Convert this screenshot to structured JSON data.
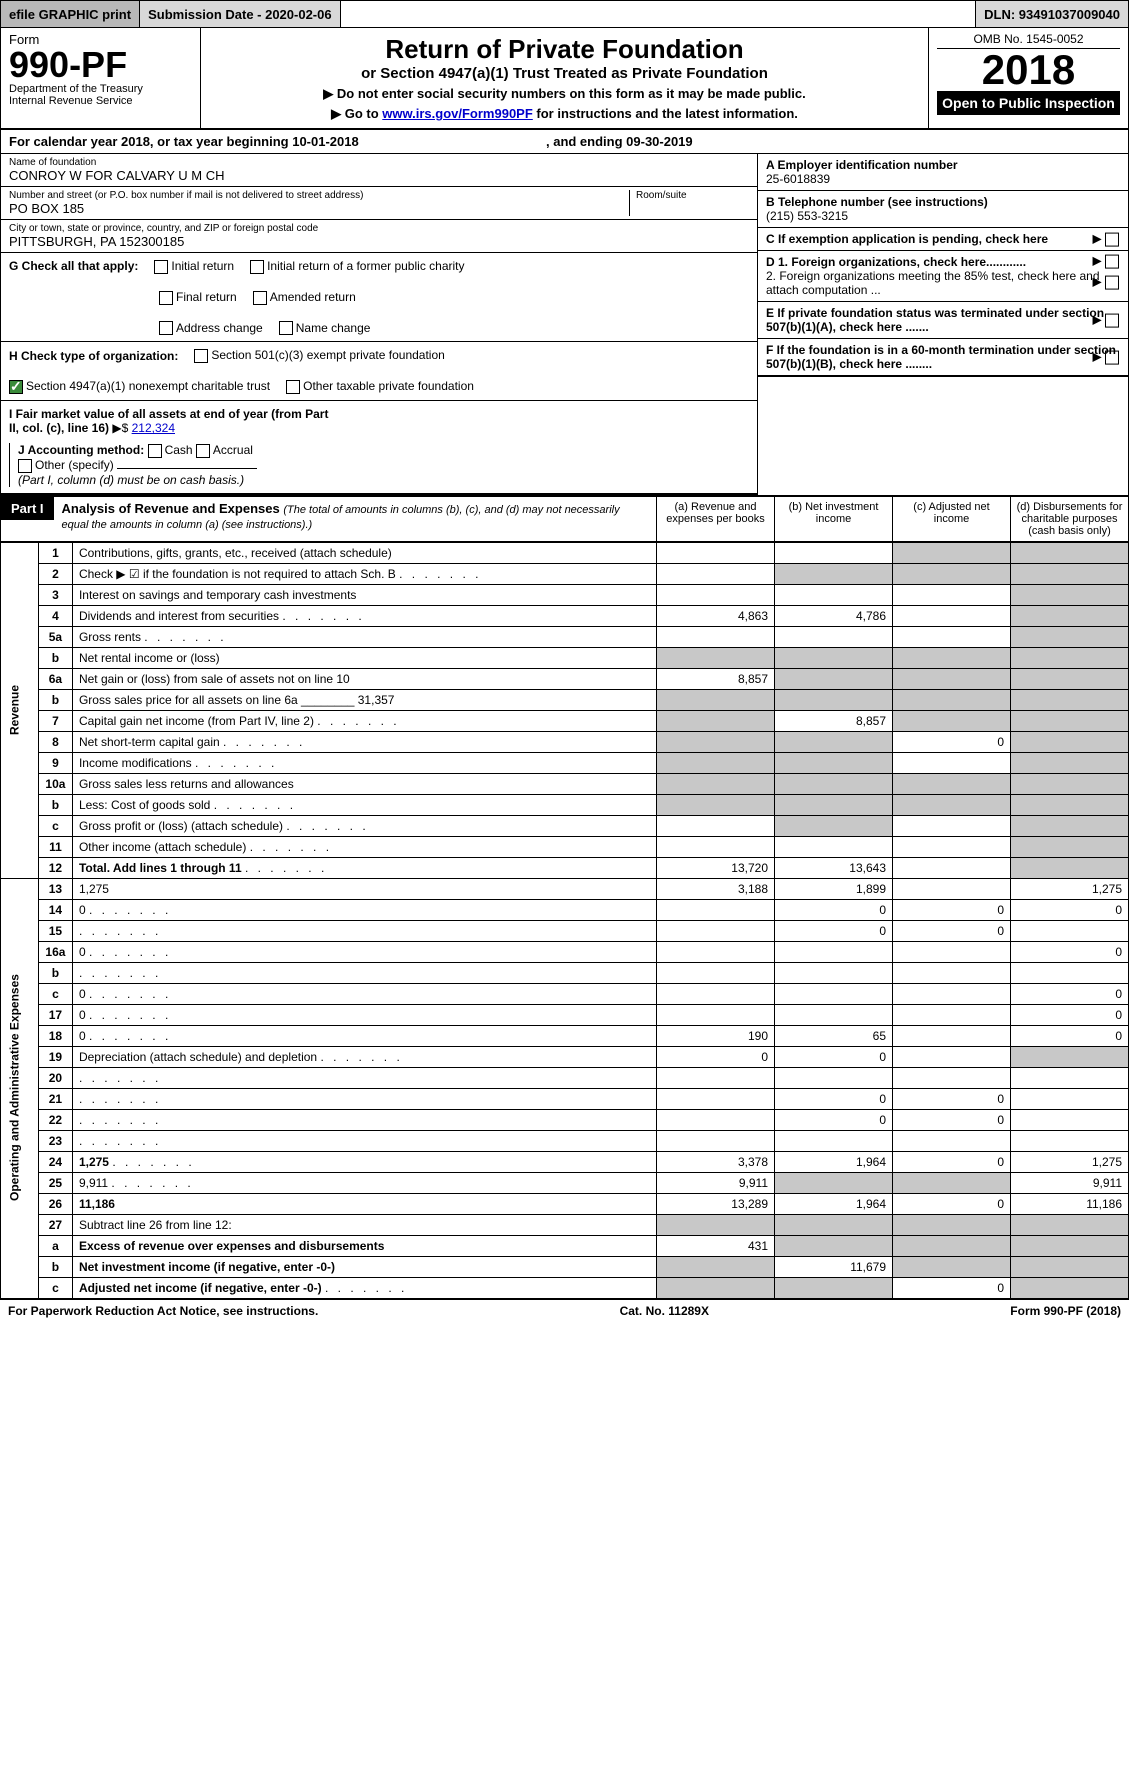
{
  "colors": {
    "black": "#000000",
    "white": "#ffffff",
    "gray_dark": "#b8b8b8",
    "gray_mid": "#d8d8d8",
    "shade": "#c8c8c8",
    "link": "#0000cc",
    "check_green": "#3a8a3a"
  },
  "topbar": {
    "efile": "efile GRAPHIC print",
    "subdate_label": "Submission Date - 2020-02-06",
    "dln": "DLN: 93491037009040"
  },
  "header": {
    "form_word": "Form",
    "form_num": "990-PF",
    "dept": "Department of the Treasury",
    "irs": "Internal Revenue Service",
    "title": "Return of Private Foundation",
    "subtitle": "or Section 4947(a)(1) Trust Treated as Private Foundation",
    "note1": "▶ Do not enter social security numbers on this form as it may be made public.",
    "note2_pre": "▶ Go to ",
    "note2_link": "www.irs.gov/Form990PF",
    "note2_post": " for instructions and the latest information.",
    "omb": "OMB No. 1545-0052",
    "year": "2018",
    "open": "Open to Public Inspection"
  },
  "calrow": {
    "text_a": "For calendar year 2018, or tax year beginning 10-01-2018",
    "text_b": ", and ending 09-30-2019"
  },
  "info": {
    "name_lbl": "Name of foundation",
    "name_val": "CONROY W FOR CALVARY U M CH",
    "addr_lbl": "Number and street (or P.O. box number if mail is not delivered to street address)",
    "room_lbl": "Room/suite",
    "addr_val": "PO BOX 185",
    "city_lbl": "City or town, state or province, country, and ZIP or foreign postal code",
    "city_val": "PITTSBURGH, PA  152300185",
    "ein_lbl": "A Employer identification number",
    "ein_val": "25-6018839",
    "tel_lbl": "B Telephone number (see instructions)",
    "tel_val": "(215) 553-3215",
    "c_lbl": "C If exemption application is pending, check here",
    "d1": "D 1. Foreign organizations, check here............",
    "d2": "2. Foreign organizations meeting the 85% test, check here and attach computation ...",
    "e_lbl": "E  If private foundation status was terminated under section 507(b)(1)(A), check here .......",
    "f_lbl": "F  If the foundation is in a 60-month termination under section 507(b)(1)(B), check here ........"
  },
  "checks": {
    "g_lbl": "G Check all that apply:",
    "g_opts": [
      "Initial return",
      "Initial return of a former public charity",
      "Final return",
      "Amended return",
      "Address change",
      "Name change"
    ],
    "h_lbl": "H Check type of organization:",
    "h1": "Section 501(c)(3) exempt private foundation",
    "h2": "Section 4947(a)(1) nonexempt charitable trust",
    "h3": "Other taxable private foundation",
    "i_lbl": "I Fair market value of all assets at end of year (from Part II, col. (c), line 16)",
    "i_val": "212,324",
    "j_lbl": "J Accounting method:",
    "j1": "Cash",
    "j2": "Accrual",
    "j3": "Other (specify)",
    "j_note": "(Part I, column (d) must be on cash basis.)"
  },
  "part1": {
    "tag": "Part I",
    "title": "Analysis of Revenue and Expenses",
    "title_note": "(The total of amounts in columns (b), (c), and (d) may not necessarily equal the amounts in column (a) (see instructions).)",
    "col_a": "(a)   Revenue and expenses per books",
    "col_b": "(b)  Net investment income",
    "col_c": "(c)  Adjusted net income",
    "col_d": "(d)  Disbursements for charitable purposes (cash basis only)"
  },
  "sidelabels": {
    "revenue": "Revenue",
    "expenses": "Operating and Administrative Expenses"
  },
  "rows": [
    {
      "n": "1",
      "d": "Contributions, gifts, grants, etc., received (attach schedule)",
      "a": "",
      "b": "",
      "c_shade": true,
      "d_shade": true
    },
    {
      "n": "2",
      "d": "Check ▶ ☑ if the foundation is not required to attach Sch. B",
      "dots": true,
      "a": "",
      "b_shade": true,
      "c_shade": true,
      "d_shade": true
    },
    {
      "n": "3",
      "d": "Interest on savings and temporary cash investments",
      "a": "",
      "b": "",
      "c": "",
      "d_shade": true
    },
    {
      "n": "4",
      "d": "Dividends and interest from securities",
      "dots": true,
      "a": "4,863",
      "b": "4,786",
      "c": "",
      "d_shade": true
    },
    {
      "n": "5a",
      "d": "Gross rents",
      "dots": true,
      "a": "",
      "b": "",
      "c": "",
      "d_shade": true
    },
    {
      "n": "b",
      "d": "Net rental income or (loss)",
      "a_shade": true,
      "b_shade": true,
      "c_shade": true,
      "d_shade": true
    },
    {
      "n": "6a",
      "d": "Net gain or (loss) from sale of assets not on line 10",
      "a": "8,857",
      "b_shade": true,
      "c_shade": true,
      "d_shade": true
    },
    {
      "n": "b",
      "d": "Gross sales price for all assets on line 6a ________ 31,357",
      "a_shade": true,
      "b_shade": true,
      "c_shade": true,
      "d_shade": true
    },
    {
      "n": "7",
      "d": "Capital gain net income (from Part IV, line 2)",
      "dots": true,
      "a_shade": true,
      "b": "8,857",
      "c_shade": true,
      "d_shade": true
    },
    {
      "n": "8",
      "d": "Net short-term capital gain",
      "dots": true,
      "a_shade": true,
      "b_shade": true,
      "c": "0",
      "d_shade": true
    },
    {
      "n": "9",
      "d": "Income modifications",
      "dots": true,
      "a_shade": true,
      "b_shade": true,
      "c": "",
      "d_shade": true
    },
    {
      "n": "10a",
      "d": "Gross sales less returns and allowances",
      "a_shade": true,
      "b_shade": true,
      "c_shade": true,
      "d_shade": true
    },
    {
      "n": "b",
      "d": "Less: Cost of goods sold",
      "dots": true,
      "a_shade": true,
      "b_shade": true,
      "c_shade": true,
      "d_shade": true
    },
    {
      "n": "c",
      "d": "Gross profit or (loss) (attach schedule)",
      "dots": true,
      "a": "",
      "b_shade": true,
      "c": "",
      "d_shade": true
    },
    {
      "n": "11",
      "d": "Other income (attach schedule)",
      "dots": true,
      "a": "",
      "b": "",
      "c": "",
      "d_shade": true
    },
    {
      "n": "12",
      "d_bold": true,
      "d": "Total. Add lines 1 through 11",
      "dots": true,
      "a": "13,720",
      "b": "13,643",
      "c": "",
      "d_shade": true
    },
    {
      "n": "13",
      "d": "1,275",
      "a": "3,188",
      "b": "1,899",
      "c": ""
    },
    {
      "n": "14",
      "d": "0",
      "dots": true,
      "a": "",
      "b": "0",
      "c": "0"
    },
    {
      "n": "15",
      "d": "",
      "dots": true,
      "a": "",
      "b": "0",
      "c": "0"
    },
    {
      "n": "16a",
      "d": "0",
      "dots": true,
      "a": "",
      "b": "",
      "c": ""
    },
    {
      "n": "b",
      "d": "",
      "dots": true,
      "a": "",
      "b": "",
      "c": ""
    },
    {
      "n": "c",
      "d": "0",
      "dots": true,
      "a": "",
      "b": "",
      "c": ""
    },
    {
      "n": "17",
      "d": "0",
      "dots": true,
      "a": "",
      "b": "",
      "c": ""
    },
    {
      "n": "18",
      "d": "0",
      "dots": true,
      "a": "190",
      "b": "65",
      "c": ""
    },
    {
      "n": "19",
      "d": "Depreciation (attach schedule) and depletion",
      "dots": true,
      "a": "0",
      "b": "0",
      "c": "",
      "d_shade": true
    },
    {
      "n": "20",
      "d": "",
      "dots": true,
      "a": "",
      "b": "",
      "c": ""
    },
    {
      "n": "21",
      "d": "",
      "dots": true,
      "a": "",
      "b": "0",
      "c": "0"
    },
    {
      "n": "22",
      "d": "",
      "dots": true,
      "a": "",
      "b": "0",
      "c": "0"
    },
    {
      "n": "23",
      "d": "",
      "dots": true,
      "a": "",
      "b": "",
      "c": ""
    },
    {
      "n": "24",
      "d_bold": true,
      "d": "1,275",
      "dots": true,
      "a": "3,378",
      "b": "1,964",
      "c": "0"
    },
    {
      "n": "25",
      "d": "9,911",
      "dots": true,
      "a": "9,911",
      "b_shade": true,
      "c_shade": true
    },
    {
      "n": "26",
      "d_bold": true,
      "d": "11,186",
      "a": "13,289",
      "b": "1,964",
      "c": "0"
    },
    {
      "n": "27",
      "d": "Subtract line 26 from line 12:",
      "a_shade": true,
      "b_shade": true,
      "c_shade": true,
      "d_shade": true
    },
    {
      "n": "a",
      "d_bold": true,
      "d": "Excess of revenue over expenses and disbursements",
      "a": "431",
      "b_shade": true,
      "c_shade": true,
      "d_shade": true
    },
    {
      "n": "b",
      "d_bold": true,
      "d": "Net investment income (if negative, enter -0-)",
      "a_shade": true,
      "b": "11,679",
      "c_shade": true,
      "d_shade": true
    },
    {
      "n": "c",
      "d_bold": true,
      "d": "Adjusted net income (if negative, enter -0-)",
      "dots": true,
      "a_shade": true,
      "b_shade": true,
      "c": "0",
      "d_shade": true
    }
  ],
  "footer": {
    "left": "For Paperwork Reduction Act Notice, see instructions.",
    "mid": "Cat. No. 11289X",
    "right": "Form 990-PF (2018)"
  }
}
